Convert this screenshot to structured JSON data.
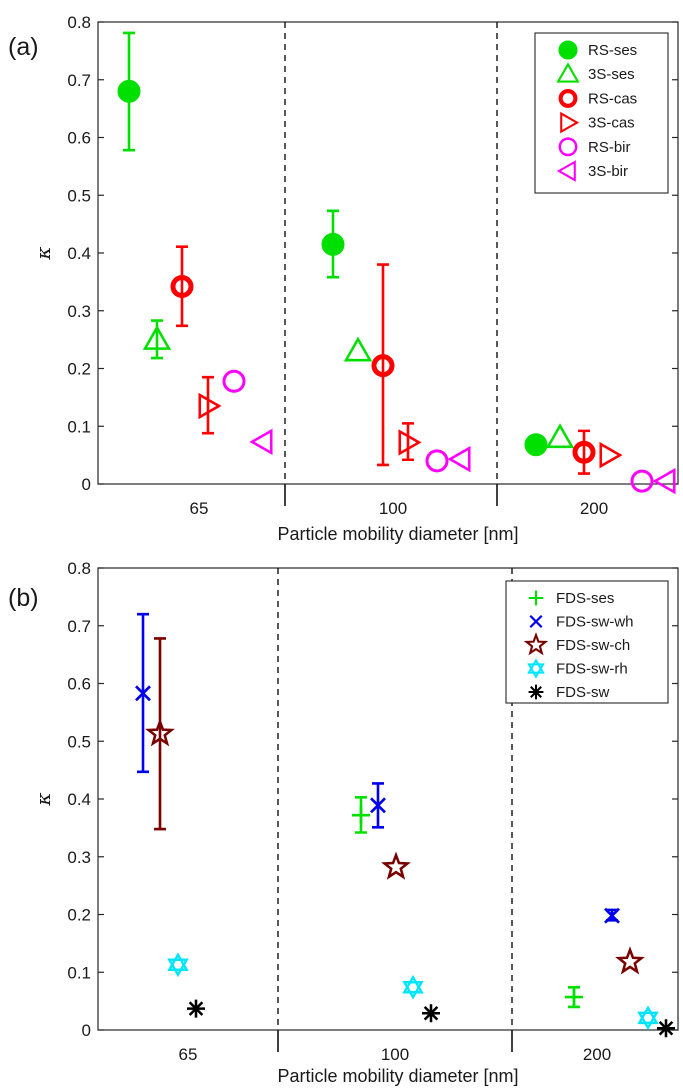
{
  "chart_data": [
    {
      "type": "scatter",
      "panel_label": "(a)",
      "xlabel": "Particle mobility diameter [nm]",
      "ylabel": "κ",
      "ylim": [
        0,
        0.8
      ],
      "yticks": [
        "0",
        "0.1",
        "0.2",
        "0.3",
        "0.4",
        "0.5",
        "0.6",
        "0.7",
        "0.8"
      ],
      "categories": [
        "65",
        "100",
        "200"
      ],
      "legend_position": "top-right",
      "grid": false,
      "series": [
        {
          "name": "RS-ses",
          "marker": "circle-filled",
          "color": "#00e000",
          "points": [
            {
              "category": "65",
              "y": 0.68,
              "err": [
                0.578,
                0.781
              ]
            },
            {
              "category": "100",
              "y": 0.415,
              "err": [
                0.358,
                0.473
              ]
            },
            {
              "category": "200",
              "y": 0.068
            }
          ]
        },
        {
          "name": "3S-ses",
          "marker": "triangle-up",
          "color": "#00e000",
          "points": [
            {
              "category": "65",
              "y": 0.25,
              "err": [
                0.218,
                0.283
              ]
            },
            {
              "category": "100",
              "y": 0.23
            },
            {
              "category": "200",
              "y": 0.08
            }
          ]
        },
        {
          "name": "RS-cas",
          "marker": "circle-ring",
          "color": "#ff0000",
          "points": [
            {
              "category": "65",
              "y": 0.342,
              "err": [
                0.274,
                0.411
              ]
            },
            {
              "category": "100",
              "y": 0.205,
              "err": [
                0.033,
                0.38
              ]
            },
            {
              "category": "200",
              "y": 0.055,
              "err": [
                0.018,
                0.092
              ]
            }
          ]
        },
        {
          "name": "3S-cas",
          "marker": "triangle-right",
          "color": "#ff0000",
          "points": [
            {
              "category": "65",
              "y": 0.135,
              "err": [
                0.088,
                0.185
              ]
            },
            {
              "category": "100",
              "y": 0.072,
              "err": [
                0.042,
                0.105
              ]
            },
            {
              "category": "200",
              "y": 0.05
            }
          ]
        },
        {
          "name": "RS-bir",
          "marker": "circle-open",
          "color": "#ff00ff",
          "points": [
            {
              "category": "65",
              "y": 0.178
            },
            {
              "category": "100",
              "y": 0.04
            },
            {
              "category": "200",
              "y": 0.005
            }
          ]
        },
        {
          "name": "3S-bir",
          "marker": "triangle-left",
          "color": "#ff00ff",
          "points": [
            {
              "category": "65",
              "y": 0.073
            },
            {
              "category": "100",
              "y": 0.043
            },
            {
              "category": "200",
              "y": 0.005
            }
          ]
        }
      ]
    },
    {
      "type": "scatter",
      "panel_label": "(b)",
      "xlabel": "Particle mobility diameter [nm]",
      "ylabel": "κ",
      "ylim": [
        0,
        0.8
      ],
      "yticks": [
        "0",
        "0.1",
        "0.2",
        "0.3",
        "0.4",
        "0.5",
        "0.6",
        "0.7",
        "0.8"
      ],
      "categories": [
        "65",
        "100",
        "200"
      ],
      "legend_position": "top-right",
      "grid": false,
      "series": [
        {
          "name": "FDS-ses",
          "marker": "plus",
          "color": "#00e000",
          "points": [
            {
              "category": "100",
              "y": 0.372,
              "err": [
                0.342,
                0.403
              ]
            },
            {
              "category": "200",
              "y": 0.057,
              "err": [
                0.04,
                0.074
              ]
            }
          ]
        },
        {
          "name": "FDS-sw-wh",
          "marker": "x",
          "color": "#0000ee",
          "points": [
            {
              "category": "65",
              "y": 0.583,
              "err": [
                0.447,
                0.72
              ]
            },
            {
              "category": "100",
              "y": 0.389,
              "err": [
                0.351,
                0.427
              ]
            },
            {
              "category": "200",
              "y": 0.198,
              "err": [
                0.19,
                0.208
              ]
            }
          ]
        },
        {
          "name": "FDS-sw-ch",
          "marker": "pentagram",
          "color": "#7a0000",
          "points": [
            {
              "category": "65",
              "y": 0.513,
              "err": [
                0.348,
                0.678
              ]
            },
            {
              "category": "100",
              "y": 0.282
            },
            {
              "category": "200",
              "y": 0.118
            }
          ]
        },
        {
          "name": "FDS-sw-rh",
          "marker": "hexagram",
          "color": "#00e5ff",
          "points": [
            {
              "category": "65",
              "y": 0.113
            },
            {
              "category": "100",
              "y": 0.074
            },
            {
              "category": "200",
              "y": 0.021
            }
          ]
        },
        {
          "name": "FDS-sw",
          "marker": "asterisk",
          "color": "#000000",
          "points": [
            {
              "category": "65",
              "y": 0.037
            },
            {
              "category": "100",
              "y": 0.029
            },
            {
              "category": "200",
              "y": 0.003
            }
          ]
        }
      ]
    }
  ]
}
